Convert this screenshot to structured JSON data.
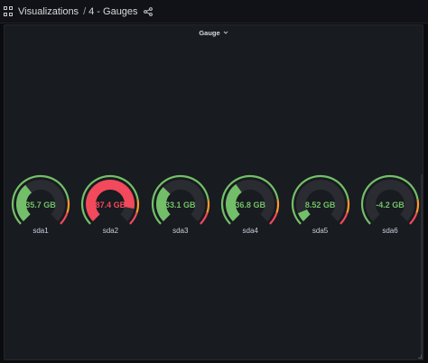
{
  "breadcrumb": {
    "section": "Visualizations",
    "separator": "/",
    "page": "4 - Gauges"
  },
  "panel": {
    "title": "Gauge"
  },
  "thresholds": {
    "min": 0,
    "max": 100,
    "green_until": 80,
    "orange_until": 90,
    "unit": "GB"
  },
  "colors": {
    "green": "#73bf69",
    "red": "#f2495c",
    "orange": "#ff9830",
    "track": "#2a2c31"
  },
  "gauges": [
    {
      "label": "sda1",
      "value": 35.7,
      "display": "35.7 GB",
      "color": "#73bf69"
    },
    {
      "label": "sda2",
      "value": 87.4,
      "display": "87.4 GB",
      "color": "#f2495c"
    },
    {
      "label": "sda3",
      "value": 33.1,
      "display": "33.1 GB",
      "color": "#73bf69"
    },
    {
      "label": "sda4",
      "value": 36.8,
      "display": "36.8 GB",
      "color": "#73bf69"
    },
    {
      "label": "sda5",
      "value": 8.52,
      "display": "8.52 GB",
      "color": "#73bf69"
    },
    {
      "label": "sda6",
      "value": -4.2,
      "display": "-4.2 GB",
      "color": "#73bf69"
    }
  ]
}
